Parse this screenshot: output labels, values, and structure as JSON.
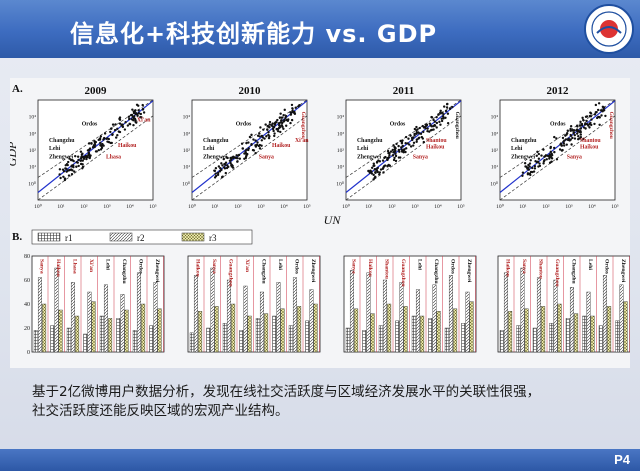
{
  "slide": {
    "title": "信息化+科技创新能力 vs. GDP",
    "caption_line1": "基于2亿微博用户数据分析，发现在线社交活跃度与区域经济发展水平的关联性很强，",
    "caption_line2": "社交活跃度还能反映区域的宏观产业结构。",
    "page": "P4",
    "colors": {
      "title_bar": "#3d6cc0",
      "fit_line": "#2233cc",
      "city_label": "#b22222",
      "grid_line": "#cc3344"
    }
  },
  "chart_data": [
    {
      "type": "scatter",
      "panel_label": "A.",
      "xlabel": "UN",
      "ylabel": "GDP",
      "x_log": true,
      "y_log": true,
      "xlim": [
        1,
        100000
      ],
      "ylim": [
        0.1,
        100000
      ],
      "x_ticks": [
        "10⁰",
        "10¹",
        "10²",
        "10³",
        "10⁴",
        "10⁵"
      ],
      "y_ticks": [
        "10⁰",
        "10¹",
        "10²",
        "10³",
        "10⁴"
      ],
      "subplots": [
        {
          "title": "2009",
          "labels": [
            {
              "text": "Ordos",
              "color": "black",
              "x": 80,
              "y": 3000
            },
            {
              "text": "Xi'an",
              "color": "red",
              "x": 20000,
              "y": 5000
            },
            {
              "text": "Changzhu",
              "color": "black",
              "x": 3,
              "y": 300
            },
            {
              "text": "Lehi",
              "color": "black",
              "x": 3,
              "y": 100
            },
            {
              "text": "Haikou",
              "color": "red",
              "x": 3000,
              "y": 150
            },
            {
              "text": "Lhasa",
              "color": "red",
              "x": 900,
              "y": 30
            },
            {
              "text": "Zhengwei",
              "color": "black",
              "x": 3,
              "y": 30
            }
          ]
        },
        {
          "title": "2010",
          "labels": [
            {
              "text": "Ordos",
              "color": "black",
              "x": 80,
              "y": 3000
            },
            {
              "text": "Xi'an",
              "color": "red",
              "x": 30000,
              "y": 300
            },
            {
              "text": "Guangzhou",
              "color": "red",
              "x": 60000,
              "y": 20000
            },
            {
              "text": "Changzhu",
              "color": "black",
              "x": 3,
              "y": 300
            },
            {
              "text": "Lehi",
              "color": "black",
              "x": 3,
              "y": 100
            },
            {
              "text": "Haikou",
              "color": "red",
              "x": 3000,
              "y": 150
            },
            {
              "text": "Sanya",
              "color": "red",
              "x": 800,
              "y": 30
            },
            {
              "text": "Zhengwei",
              "color": "black",
              "x": 3,
              "y": 30
            }
          ]
        },
        {
          "title": "2011",
          "labels": [
            {
              "text": "Ordos",
              "color": "black",
              "x": 80,
              "y": 3000
            },
            {
              "text": "Guangzhou",
              "color": "black",
              "x": 60000,
              "y": 20000
            },
            {
              "text": "Changzhu",
              "color": "black",
              "x": 3,
              "y": 300
            },
            {
              "text": "Lehi",
              "color": "black",
              "x": 3,
              "y": 100
            },
            {
              "text": "Shantou",
              "color": "red",
              "x": 3000,
              "y": 300
            },
            {
              "text": "Haikou",
              "color": "red",
              "x": 3000,
              "y": 120
            },
            {
              "text": "Sanya",
              "color": "red",
              "x": 800,
              "y": 30
            },
            {
              "text": "Zhengwei",
              "color": "black",
              "x": 3,
              "y": 30
            }
          ]
        },
        {
          "title": "2012",
          "labels": [
            {
              "text": "Ordos",
              "color": "black",
              "x": 150,
              "y": 3000
            },
            {
              "text": "Guangzhou",
              "color": "red",
              "x": 60000,
              "y": 20000
            },
            {
              "text": "Changzhu",
              "color": "black",
              "x": 3,
              "y": 300
            },
            {
              "text": "Lehi",
              "color": "black",
              "x": 3,
              "y": 100
            },
            {
              "text": "Shantou",
              "color": "red",
              "x": 3000,
              "y": 300
            },
            {
              "text": "Haikou",
              "color": "red",
              "x": 3000,
              "y": 120
            },
            {
              "text": "Sanya",
              "color": "red",
              "x": 800,
              "y": 30
            },
            {
              "text": "Zhengwei",
              "color": "black",
              "x": 3,
              "y": 30
            }
          ]
        }
      ]
    },
    {
      "type": "bar",
      "panel_label": "B.",
      "legend": [
        "r1",
        "r2",
        "r3"
      ],
      "legend_position": "top-left",
      "ylim": [
        0,
        80
      ],
      "y_ticks": [
        "0",
        "20",
        "40",
        "60",
        "80"
      ],
      "subplots": [
        {
          "categories": [
            "Sanya",
            "Haikou",
            "Lhasa",
            "Xi'an",
            "Lehi",
            "Changzhu",
            "Ordos",
            "Zhengwei"
          ],
          "r1": [
            18,
            22,
            20,
            15,
            30,
            28,
            18,
            22
          ],
          "r2": [
            62,
            70,
            58,
            50,
            56,
            48,
            66,
            58
          ],
          "r3": [
            40,
            35,
            30,
            42,
            28,
            35,
            40,
            36
          ]
        },
        {
          "categories": [
            "Haikou",
            "Sanya",
            "Guangzhou",
            "Xi'an",
            "Changzhu",
            "Lehi",
            "Ordos",
            "Zhengwei"
          ],
          "r1": [
            16,
            20,
            24,
            18,
            28,
            30,
            22,
            26
          ],
          "r2": [
            64,
            70,
            60,
            55,
            50,
            58,
            62,
            52
          ],
          "r3": [
            34,
            38,
            40,
            30,
            32,
            36,
            38,
            40
          ]
        },
        {
          "categories": [
            "Sanya",
            "Haikou",
            "Shantou",
            "Guangzhou",
            "Lehi",
            "Changzhu",
            "Ordos",
            "Zhengwei"
          ],
          "r1": [
            20,
            18,
            22,
            26,
            30,
            28,
            20,
            24
          ],
          "r2": [
            68,
            66,
            60,
            58,
            52,
            56,
            64,
            50
          ],
          "r3": [
            36,
            32,
            40,
            38,
            30,
            34,
            36,
            42
          ]
        },
        {
          "categories": [
            "Haikou",
            "Sanya",
            "Shantou",
            "Guangzhou",
            "Changzhu",
            "Lehi",
            "Ordos",
            "Zhengwei"
          ],
          "r1": [
            18,
            22,
            20,
            24,
            28,
            30,
            22,
            26
          ],
          "r2": [
            66,
            70,
            62,
            60,
            54,
            50,
            64,
            56
          ],
          "r3": [
            34,
            36,
            38,
            40,
            32,
            30,
            38,
            42
          ]
        }
      ]
    }
  ]
}
